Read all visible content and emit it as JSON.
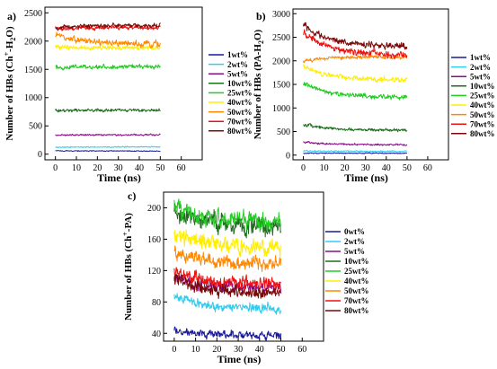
{
  "chart_data": [
    {
      "type": "line",
      "panel_label": "a)",
      "xlabel": "Time (ns)",
      "ylabel": "Number of HBs (Ch",
      "ylabel_sup": "+",
      "ylabel_tail": "-H",
      "ylabel_sub": "2",
      "ylabel_end": "O)",
      "xlim": [
        -5,
        70
      ],
      "ylim": [
        -100,
        2600
      ],
      "xticks": [
        0,
        10,
        20,
        30,
        40,
        50,
        60
      ],
      "yticks": [
        0,
        500,
        1000,
        1500,
        2000,
        2500
      ],
      "legend_placement": "right",
      "series": [
        {
          "name": "1wt%",
          "color": "#1a1a99",
          "start": 60,
          "end": 55,
          "noise": 6
        },
        {
          "name": "2wt%",
          "color": "#33ccee",
          "start": 120,
          "end": 128,
          "noise": 8
        },
        {
          "name": "5wt%",
          "color": "#8b0c8b",
          "start": 340,
          "end": 340,
          "noise": 12
        },
        {
          "name": "10wt%",
          "color": "#1f6e1f",
          "start": 780,
          "end": 775,
          "noise": 22
        },
        {
          "name": "25wt%",
          "color": "#22cc22",
          "start": 1540,
          "end": 1545,
          "noise": 30
        },
        {
          "name": "40wt%",
          "color": "#ffee00",
          "start": 1900,
          "end": 1880,
          "noise": 30
        },
        {
          "name": "50wt%",
          "color": "#ff8800",
          "start": 2100,
          "end": 1950,
          "noise": 45
        },
        {
          "name": "70wt%",
          "color": "#ee1111",
          "start": 2210,
          "end": 2240,
          "noise": 28
        },
        {
          "name": "80wt%",
          "color": "#7a0a0a",
          "start": 2230,
          "end": 2280,
          "noise": 30
        }
      ]
    },
    {
      "type": "line",
      "panel_label": "b)",
      "xlabel": "Time (ns)",
      "ylabel": "Number of HBs (PA-H",
      "ylabel_sup": "",
      "ylabel_tail": "",
      "ylabel_sub": "2",
      "ylabel_end": "O)",
      "xlim": [
        -5,
        70
      ],
      "ylim": [
        -100,
        3100
      ],
      "xticks": [
        0,
        10,
        20,
        30,
        40,
        50,
        60
      ],
      "yticks": [
        0,
        500,
        1000,
        1500,
        2000,
        2500,
        3000
      ],
      "legend_placement": "right",
      "series": [
        {
          "name": "1wt%",
          "color": "#1a1a99",
          "start": 40,
          "end": 40,
          "noise": 8
        },
        {
          "name": "2wt%",
          "color": "#33ccee",
          "start": 90,
          "end": 80,
          "noise": 10
        },
        {
          "name": "5wt%",
          "color": "#8b0c8b",
          "start": 280,
          "end": 220,
          "noise": 15
        },
        {
          "name": "10wt%",
          "color": "#1f6e1f",
          "start": 650,
          "end": 530,
          "noise": 25
        },
        {
          "name": "25wt%",
          "color": "#22cc22",
          "start": 1520,
          "end": 1230,
          "noise": 40
        },
        {
          "name": "40wt%",
          "color": "#ffee00",
          "start": 1900,
          "end": 1600,
          "noise": 45
        },
        {
          "name": "50wt%",
          "color": "#ff8800",
          "start": 2000,
          "end": 2080,
          "noise": 30
        },
        {
          "name": "70wt%",
          "color": "#ee1111",
          "start": 2600,
          "end": 2130,
          "noise": 60
        },
        {
          "name": "80wt%",
          "color": "#7a0a0a",
          "start": 2750,
          "end": 2320,
          "noise": 55
        }
      ]
    },
    {
      "type": "line",
      "panel_label": "c)",
      "xlabel": "Time (ns)",
      "ylabel": "Number of HBs (Ch",
      "ylabel_sup": "+",
      "ylabel_tail": "-PA)",
      "ylabel_sub": "",
      "ylabel_end": "",
      "xlim": [
        -5,
        70
      ],
      "ylim": [
        30,
        220
      ],
      "xticks": [
        0,
        10,
        20,
        30,
        40,
        50,
        60
      ],
      "yticks": [
        40,
        80,
        120,
        160,
        200
      ],
      "legend_placement": "right",
      "series": [
        {
          "name": "0wt%",
          "color": "#1a1a99",
          "start": 44,
          "end": 38,
          "noise": 4
        },
        {
          "name": "2wt%",
          "color": "#33ccee",
          "start": 88,
          "end": 72,
          "noise": 5
        },
        {
          "name": "5wt%",
          "color": "#8b0c8b",
          "start": 110,
          "end": 98,
          "noise": 6
        },
        {
          "name": "10wt%",
          "color": "#1f6e1f",
          "start": 195,
          "end": 178,
          "noise": 9
        },
        {
          "name": "25wt%",
          "color": "#22cc22",
          "start": 205,
          "end": 182,
          "noise": 9
        },
        {
          "name": "40wt%",
          "color": "#ffee00",
          "start": 168,
          "end": 150,
          "noise": 8
        },
        {
          "name": "50wt%",
          "color": "#ff8800",
          "start": 145,
          "end": 128,
          "noise": 7
        },
        {
          "name": "70wt%",
          "color": "#ee1111",
          "start": 118,
          "end": 104,
          "noise": 7
        },
        {
          "name": "80wt%",
          "color": "#7a0a0a",
          "start": 110,
          "end": 92,
          "noise": 6
        }
      ]
    }
  ]
}
